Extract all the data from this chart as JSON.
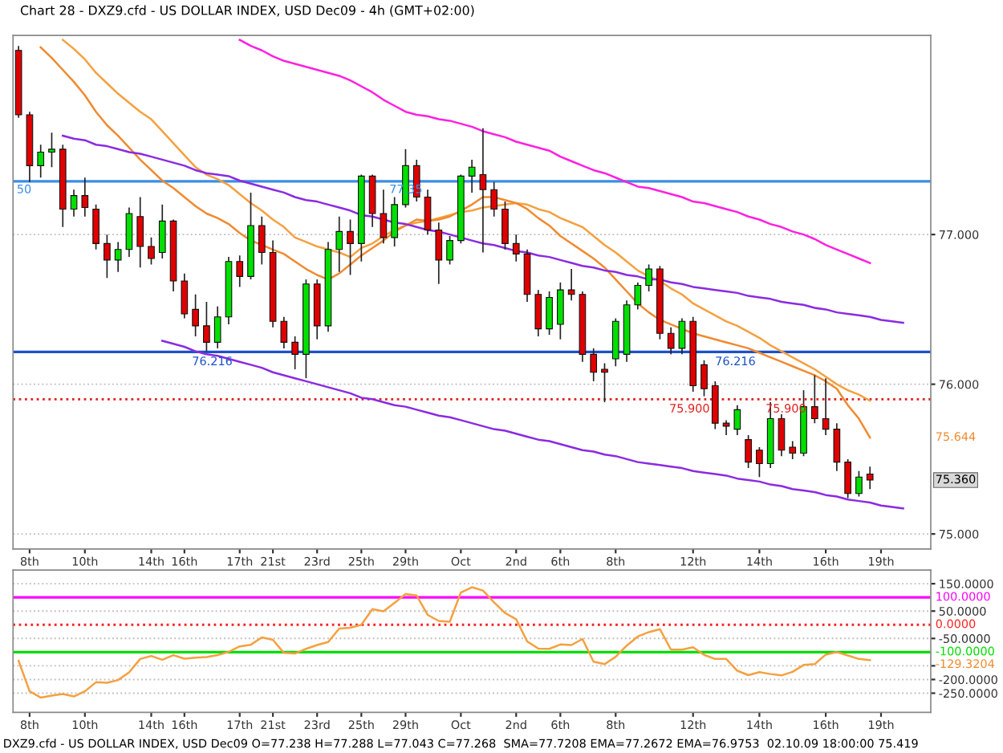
{
  "chart_data": [
    {
      "type": "candlestick",
      "title": "Chart 28 - DXZ9.cfd - US DOLLAR INDEX, USD Dec09 - 4h (GMT+02:00)",
      "categories": [
        null,
        "8th",
        null,
        null,
        null,
        null,
        "10th",
        null,
        null,
        null,
        null,
        null,
        "14th",
        null,
        null,
        "16th",
        null,
        null,
        null,
        null,
        "17th",
        null,
        null,
        "21st",
        null,
        null,
        null,
        "23rd",
        null,
        null,
        null,
        "25th",
        null,
        null,
        null,
        "29th",
        null,
        null,
        null,
        null,
        "Oct",
        null,
        null,
        null,
        null,
        "2nd",
        null,
        null,
        null,
        "6th",
        null,
        null,
        null,
        null,
        "8th",
        null,
        null,
        null,
        null,
        null,
        null,
        "12th",
        null,
        null,
        null,
        null,
        null,
        "14th",
        null,
        null,
        null,
        null,
        null,
        "16th",
        null,
        null,
        null,
        null,
        "19th",
        null,
        null
      ],
      "ohlc": [
        [
          78.23,
          78.26,
          77.78,
          77.8
        ],
        [
          77.8,
          77.82,
          77.35,
          77.46
        ],
        [
          77.46,
          77.6,
          77.38,
          77.55
        ],
        [
          77.55,
          77.68,
          77.45,
          77.57
        ],
        [
          77.57,
          77.6,
          77.05,
          77.17
        ],
        [
          77.17,
          77.3,
          77.12,
          77.26
        ],
        [
          77.26,
          77.38,
          77.12,
          77.18
        ],
        [
          77.17,
          77.2,
          76.9,
          76.94
        ],
        [
          76.94,
          77.0,
          76.71,
          76.83
        ],
        [
          76.83,
          76.95,
          76.75,
          76.9
        ],
        [
          76.9,
          77.18,
          76.85,
          77.14
        ],
        [
          77.12,
          77.25,
          76.78,
          76.92
        ],
        [
          76.92,
          76.98,
          76.8,
          76.84
        ],
        [
          76.88,
          77.2,
          76.84,
          77.09
        ],
        [
          77.09,
          77.1,
          76.62,
          76.69
        ],
        [
          76.69,
          76.74,
          76.44,
          76.47
        ],
        [
          76.5,
          76.6,
          76.32,
          76.39
        ],
        [
          76.39,
          76.55,
          76.22,
          76.28
        ],
        [
          76.28,
          76.52,
          76.24,
          76.45
        ],
        [
          76.45,
          76.85,
          76.4,
          76.82
        ],
        [
          76.82,
          76.86,
          76.65,
          76.72
        ],
        [
          76.72,
          77.28,
          76.7,
          77.06
        ],
        [
          77.06,
          77.12,
          76.8,
          76.88
        ],
        [
          76.88,
          76.96,
          76.38,
          76.42
        ],
        [
          76.42,
          76.45,
          76.24,
          76.28
        ],
        [
          76.28,
          76.32,
          76.1,
          76.2
        ],
        [
          76.2,
          76.7,
          76.04,
          76.67
        ],
        [
          76.67,
          76.7,
          76.3,
          76.39
        ],
        [
          76.39,
          76.95,
          76.35,
          76.9
        ],
        [
          76.9,
          77.12,
          76.75,
          77.02
        ],
        [
          77.02,
          77.1,
          76.73,
          76.94
        ],
        [
          76.94,
          77.4,
          76.82,
          77.39
        ],
        [
          77.39,
          77.4,
          77.05,
          77.14
        ],
        [
          77.14,
          77.3,
          76.94,
          76.98
        ],
        [
          76.98,
          77.25,
          76.92,
          77.2
        ],
        [
          77.2,
          77.57,
          77.18,
          77.46
        ],
        [
          77.46,
          77.5,
          77.22,
          77.25
        ],
        [
          77.25,
          77.3,
          77.0,
          77.03
        ],
        [
          77.03,
          77.08,
          76.67,
          76.83
        ],
        [
          76.83,
          76.99,
          76.8,
          76.96
        ],
        [
          76.96,
          77.4,
          76.94,
          77.39
        ],
        [
          77.39,
          77.5,
          77.28,
          77.45
        ],
        [
          77.4,
          77.71,
          76.88,
          77.3
        ],
        [
          77.3,
          77.35,
          77.12,
          77.17
        ],
        [
          77.17,
          77.22,
          76.9,
          76.94
        ],
        [
          76.94,
          77.0,
          76.82,
          76.87
        ],
        [
          76.87,
          76.9,
          76.55,
          76.6
        ],
        [
          76.6,
          76.63,
          76.32,
          76.37
        ],
        [
          76.37,
          76.62,
          76.33,
          76.58
        ],
        [
          76.4,
          76.68,
          76.3,
          76.63
        ],
        [
          76.63,
          76.77,
          76.56,
          76.6
        ],
        [
          76.6,
          76.62,
          76.15,
          76.2
        ],
        [
          76.2,
          76.24,
          76.02,
          76.08
        ],
        [
          76.1,
          76.14,
          75.88,
          76.08
        ],
        [
          76.17,
          76.44,
          76.12,
          76.42
        ],
        [
          76.2,
          76.56,
          76.15,
          76.53
        ],
        [
          76.53,
          76.68,
          76.5,
          76.66
        ],
        [
          76.66,
          76.8,
          76.62,
          76.77
        ],
        [
          76.77,
          76.79,
          76.3,
          76.34
        ],
        [
          76.34,
          76.38,
          76.2,
          76.24
        ],
        [
          76.24,
          76.44,
          76.2,
          76.42
        ],
        [
          76.42,
          76.45,
          75.95,
          75.99
        ],
        [
          76.13,
          76.16,
          75.92,
          75.97
        ],
        [
          75.99,
          76.02,
          75.7,
          75.74
        ],
        [
          75.74,
          75.76,
          75.66,
          75.72
        ],
        [
          75.7,
          75.86,
          75.66,
          75.83
        ],
        [
          75.63,
          75.66,
          75.44,
          75.48
        ],
        [
          75.56,
          75.58,
          75.38,
          75.47
        ],
        [
          75.47,
          75.88,
          75.44,
          75.77
        ],
        [
          75.77,
          75.8,
          75.52,
          75.56
        ],
        [
          75.58,
          75.62,
          75.5,
          75.54
        ],
        [
          75.54,
          75.96,
          75.52,
          75.85
        ],
        [
          75.85,
          76.06,
          75.74,
          75.77
        ],
        [
          75.77,
          76.04,
          75.66,
          75.7
        ],
        [
          75.7,
          75.74,
          75.42,
          75.48
        ],
        [
          75.48,
          75.5,
          75.24,
          75.27
        ],
        [
          75.27,
          75.42,
          75.25,
          75.38
        ],
        [
          75.4,
          75.45,
          75.3,
          75.36
        ],
        null,
        null,
        null
      ],
      "series": [
        {
          "type": "line",
          "color": "#ff20e0",
          "values": [
            null,
            null,
            null,
            null,
            null,
            null,
            null,
            null,
            null,
            null,
            null,
            null,
            null,
            null,
            null,
            null,
            null,
            null,
            null,
            null,
            78.3,
            78.26,
            78.23,
            78.19,
            78.16,
            78.14,
            78.12,
            78.1,
            78.08,
            78.06,
            78.03,
            77.99,
            77.95,
            77.9,
            77.86,
            77.82,
            77.8,
            77.79,
            77.77,
            77.76,
            77.74,
            77.72,
            77.69,
            77.67,
            77.65,
            77.62,
            77.6,
            77.58,
            77.56,
            77.52,
            77.49,
            77.46,
            77.43,
            77.41,
            77.38,
            77.35,
            77.32,
            77.31,
            77.29,
            77.27,
            77.25,
            77.22,
            77.21,
            77.19,
            77.17,
            77.15,
            77.12,
            77.1,
            77.07,
            77.05,
            77.02,
            77.0,
            76.97,
            76.93,
            76.9,
            76.87,
            76.84,
            76.81,
            null,
            null,
            null
          ]
        },
        {
          "type": "line",
          "color": "#f5a040",
          "values": [
            null,
            null,
            null,
            null,
            78.3,
            78.24,
            78.17,
            78.08,
            78.01,
            77.94,
            77.88,
            77.82,
            77.77,
            77.69,
            77.61,
            77.53,
            77.45,
            77.4,
            77.37,
            77.33,
            77.27,
            77.21,
            77.16,
            77.1,
            77.05,
            76.98,
            76.95,
            76.92,
            76.9,
            76.88,
            76.85,
            76.91,
            76.94,
            76.99,
            77.03,
            77.06,
            77.08,
            77.09,
            77.11,
            77.13,
            77.15,
            77.16,
            77.18,
            77.19,
            77.2,
            77.21,
            77.2,
            77.17,
            77.15,
            77.11,
            77.08,
            77.05,
            76.99,
            76.93,
            76.88,
            76.82,
            76.76,
            76.72,
            76.69,
            76.64,
            76.6,
            76.54,
            76.5,
            76.46,
            76.42,
            76.39,
            76.35,
            76.31,
            76.26,
            76.22,
            76.18,
            76.14,
            76.1,
            76.05,
            76.0,
            75.96,
            75.93,
            75.89,
            null,
            null,
            null
          ]
        },
        {
          "type": "line",
          "color": "#f08a30",
          "values": [
            null,
            null,
            78.25,
            78.18,
            78.1,
            78.02,
            77.93,
            77.82,
            77.73,
            77.66,
            77.58,
            77.5,
            77.43,
            77.36,
            77.31,
            77.25,
            77.19,
            77.14,
            77.11,
            77.07,
            77.01,
            76.96,
            76.93,
            76.9,
            76.87,
            76.82,
            76.77,
            76.73,
            76.7,
            76.74,
            76.8,
            76.86,
            76.91,
            76.96,
            77.02,
            77.06,
            77.1,
            77.09,
            77.1,
            77.12,
            77.16,
            77.2,
            77.25,
            77.25,
            77.23,
            77.21,
            77.17,
            77.11,
            77.06,
            76.99,
            76.94,
            76.89,
            76.84,
            76.78,
            76.7,
            76.62,
            76.54,
            76.48,
            76.43,
            76.4,
            76.37,
            76.34,
            76.32,
            76.3,
            76.28,
            76.26,
            76.24,
            76.21,
            76.18,
            76.15,
            76.12,
            76.09,
            76.06,
            76.02,
            75.97,
            75.86,
            75.77,
            75.644,
            null,
            null,
            null
          ]
        },
        {
          "type": "line",
          "color": "#8a2be2",
          "values": [
            null,
            null,
            null,
            null,
            77.66,
            77.64,
            77.63,
            77.6,
            77.59,
            77.57,
            77.55,
            77.54,
            77.52,
            77.5,
            77.48,
            77.46,
            77.43,
            77.41,
            77.4,
            77.39,
            77.36,
            77.34,
            77.32,
            77.3,
            77.28,
            77.25,
            77.23,
            77.22,
            77.2,
            77.18,
            77.16,
            77.13,
            77.12,
            77.1,
            77.08,
            77.07,
            77.05,
            77.03,
            77.02,
            77.0,
            76.98,
            76.96,
            76.94,
            76.93,
            76.91,
            76.89,
            76.88,
            76.86,
            76.85,
            76.83,
            76.81,
            76.79,
            76.78,
            76.76,
            76.75,
            76.73,
            76.72,
            76.7,
            76.7,
            76.68,
            76.67,
            76.65,
            76.64,
            76.63,
            76.62,
            76.61,
            76.59,
            76.58,
            76.57,
            76.55,
            76.54,
            76.53,
            76.51,
            76.5,
            76.48,
            76.47,
            76.46,
            76.45,
            76.43,
            76.42,
            76.41
          ]
        },
        {
          "type": "line",
          "color": "#8a2be2",
          "values": [
            null,
            null,
            null,
            null,
            null,
            null,
            null,
            null,
            null,
            null,
            null,
            null,
            null,
            76.29,
            76.27,
            76.25,
            76.22,
            76.2,
            76.19,
            76.17,
            76.15,
            76.13,
            76.11,
            76.08,
            76.06,
            76.04,
            76.02,
            76.0,
            75.98,
            75.96,
            75.94,
            75.91,
            75.9,
            75.88,
            75.86,
            75.85,
            75.83,
            75.81,
            75.79,
            75.78,
            75.76,
            75.74,
            75.72,
            75.7,
            75.69,
            75.67,
            75.65,
            75.63,
            75.62,
            75.6,
            75.58,
            75.56,
            75.55,
            75.53,
            75.52,
            75.5,
            75.48,
            75.47,
            75.46,
            75.45,
            75.44,
            75.42,
            75.41,
            75.4,
            75.39,
            75.37,
            75.36,
            75.35,
            75.33,
            75.32,
            75.3,
            75.29,
            75.28,
            75.26,
            75.25,
            75.23,
            75.22,
            75.21,
            75.19,
            75.18,
            75.17
          ]
        }
      ],
      "ref_lines": [
        {
          "axis": "y",
          "value": 77.355,
          "color": "#3a8ee6"
        },
        {
          "axis": "y",
          "value": 76.216,
          "color": "#1e50c8"
        },
        {
          "axis": "y",
          "value": 75.9,
          "color": "#e02020",
          "line_style": "dotted"
        }
      ],
      "annotations": [
        "50",
        "77.35",
        "76.216",
        "76.216",
        "75.900",
        "75.900",
        "75.644",
        "75.360"
      ],
      "ylim": [
        74.9,
        78.33
      ],
      "yticks": [
        {
          "value": 75,
          "label": "75.000"
        },
        {
          "value": 76,
          "label": "76.000"
        },
        {
          "value": 77,
          "label": "77.000"
        }
      ],
      "grid": "y"
    },
    {
      "type": "line",
      "categories": [
        null,
        "8th",
        null,
        null,
        null,
        null,
        "10th",
        null,
        null,
        null,
        null,
        null,
        "14th",
        null,
        null,
        "16th",
        null,
        null,
        null,
        null,
        "17th",
        null,
        null,
        "21st",
        null,
        null,
        null,
        "23rd",
        null,
        null,
        null,
        "25th",
        null,
        null,
        null,
        "29th",
        null,
        null,
        null,
        null,
        "Oct",
        null,
        null,
        null,
        null,
        "2nd",
        null,
        null,
        null,
        "6th",
        null,
        null,
        null,
        null,
        "8th",
        null,
        null,
        null,
        null,
        null,
        null,
        "12th",
        null,
        null,
        null,
        null,
        null,
        "14th",
        null,
        null,
        null,
        null,
        null,
        "16th",
        null,
        null,
        null,
        null,
        "19th",
        null,
        null
      ],
      "series": [
        {
          "color": "#f5a040",
          "values": [
            -132,
            -243,
            -266,
            -259,
            -253,
            -262,
            -243,
            -210,
            -212,
            -202,
            -174,
            -125,
            -114,
            -128,
            -111,
            -124,
            -120,
            -118,
            -111,
            -99,
            -79,
            -73,
            -46,
            -55,
            -103,
            -105,
            -88,
            -74,
            -63,
            -14,
            -11,
            0,
            57,
            49,
            80,
            112,
            107,
            36,
            14,
            11,
            118,
            137,
            125,
            82,
            43,
            20,
            -61,
            -87,
            -88,
            -72,
            -74,
            -52,
            -135,
            -144,
            -117,
            -76,
            -43,
            -27,
            -16,
            -91,
            -91,
            -82,
            -110,
            -125,
            -125,
            -168,
            -184,
            -173,
            -180,
            -185,
            -172,
            -147,
            -144,
            -109,
            -100,
            -112,
            -125,
            -129.3204,
            null,
            null,
            null
          ]
        }
      ],
      "ref_lines": [
        {
          "axis": "y",
          "value": 100,
          "label": "100.0000",
          "color": "#ff00ff"
        },
        {
          "axis": "y",
          "value": 0,
          "label": "0.0000",
          "color": "#ff2020",
          "line_style": "dotted"
        },
        {
          "axis": "y",
          "value": -100,
          "label": "-100.0000",
          "color": "#00dd00"
        }
      ],
      "annotations": [
        "-129.3204",
        "DXZ9.cfd - US DOLLAR INDEX, USD Dec09 O=77.238 H=77.288 L=77.043 C=77.268  SMA=77.7208 EMA=77.2672 EMA=76.9753  02.10.09 18:00:00 75.419"
      ],
      "ylim": [
        -320,
        200
      ],
      "yticks": [
        {
          "value": -250,
          "label": "-250.0000"
        },
        {
          "value": -200,
          "label": "-200.0000"
        },
        {
          "value": -150,
          "label": null
        },
        {
          "value": -50,
          "label": "-50.0000"
        },
        {
          "value": 50,
          "label": "50.0000"
        },
        {
          "value": 150,
          "label": "150.0000"
        }
      ],
      "grid": "y"
    }
  ]
}
